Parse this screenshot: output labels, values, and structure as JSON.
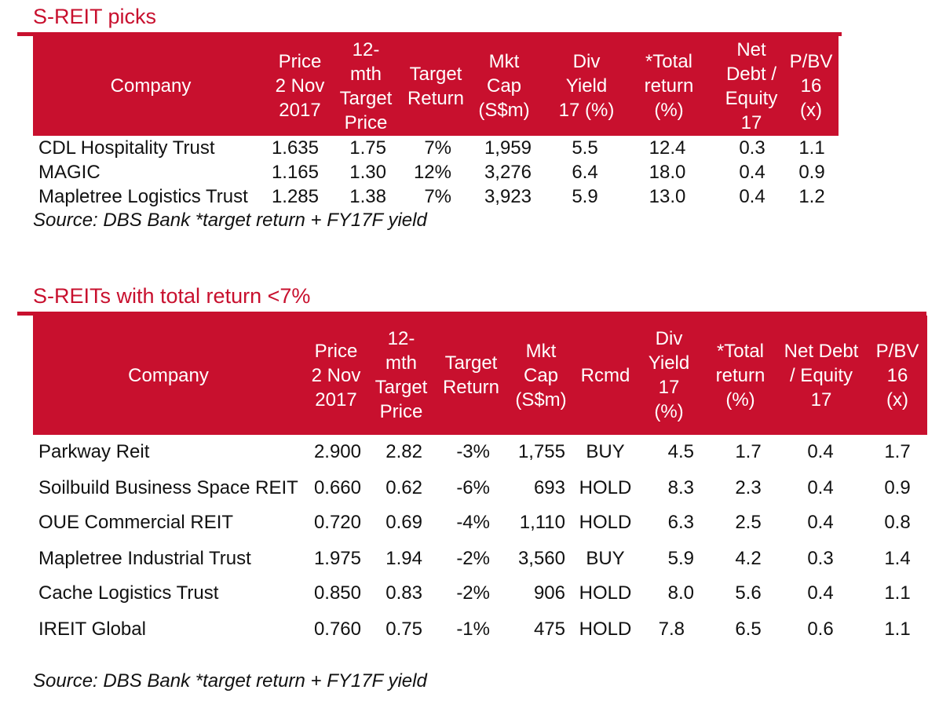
{
  "table1": {
    "title": "S-REIT picks",
    "headers": [
      "Company",
      "Price\n2 Nov\n2017",
      "12-\nmth\nTarget\nPrice",
      "Target\nReturn",
      "Mkt\nCap\n(S$m)",
      "Div\nYield\n17 (%)",
      "*Total\nreturn\n(%)",
      "Net\nDebt /\nEquity\n17",
      "P/BV\n16\n(x)"
    ],
    "rows": [
      [
        "CDL Hospitality Trust",
        "1.635",
        "1.75",
        "7%",
        "1,959",
        "5.5",
        "12.4",
        "0.3",
        "1.1"
      ],
      [
        "MAGIC",
        "1.165",
        "1.30",
        "12%",
        "3,276",
        "6.4",
        "18.0",
        "0.4",
        "0.9"
      ],
      [
        "Mapletree Logistics Trust",
        "1.285",
        "1.38",
        "7%",
        "3,923",
        "5.9",
        "13.0",
        "0.4",
        "1.2"
      ]
    ],
    "source": "Source: DBS Bank *target return + FY17F yield"
  },
  "table2": {
    "title": "S-REITs with total return <7%",
    "headers": [
      "Company",
      "Price\n2 Nov\n2017",
      "12-\nmth\nTarget\nPrice",
      "Target\nReturn",
      "Mkt\nCap\n(S$m)",
      "Rcmd",
      "Div\nYield\n17\n(%)",
      "*Total\nreturn\n(%)",
      "Net Debt\n/ Equity\n17",
      "P/BV\n16\n(x)"
    ],
    "rows": [
      [
        "Parkway Reit",
        "2.900",
        "2.82",
        "-3%",
        "1,755",
        "BUY",
        "4.5",
        "1.7",
        "0.4",
        "1.7"
      ],
      [
        "Soilbuild Business Space REIT",
        "0.660",
        "0.62",
        "-6%",
        "693",
        "HOLD",
        "8.3",
        "2.3",
        "0.4",
        "0.9"
      ],
      [
        "OUE Commercial REIT",
        "0.720",
        "0.69",
        "-4%",
        "1,110",
        "HOLD",
        "6.3",
        "2.5",
        "0.4",
        "0.8"
      ],
      [
        "Mapletree Industrial Trust",
        "1.975",
        "1.94",
        "-2%",
        "3,560",
        "BUY",
        "5.9",
        "4.2",
        "0.3",
        "1.4"
      ],
      [
        "Cache Logistics Trust",
        "0.850",
        "0.83",
        "-2%",
        "906",
        "HOLD",
        "8.0",
        "5.6",
        "0.4",
        "1.1"
      ],
      [
        "IREIT Global",
        "0.760",
        "0.75",
        "-1%",
        "475",
        "HOLD",
        "7.8",
        "6.5",
        "0.6",
        "1.1"
      ]
    ],
    "source": "Source: DBS Bank *target return + FY17F yield"
  }
}
